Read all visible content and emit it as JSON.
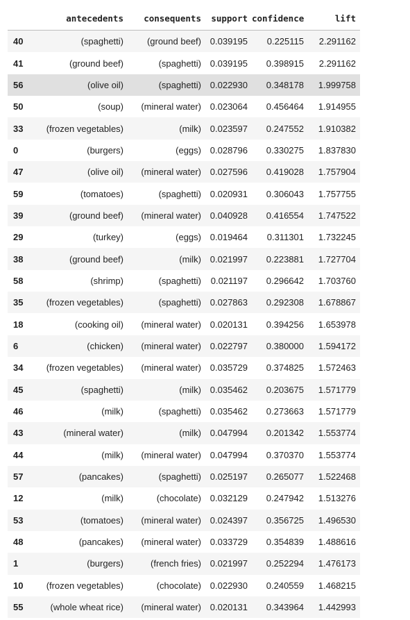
{
  "table": {
    "columns": [
      "antecedents",
      "consequents",
      "support",
      "confidence",
      "lift"
    ],
    "highlighted_index": "56",
    "rows": [
      {
        "index": "40",
        "antecedents": "(spaghetti)",
        "consequents": "(ground beef)",
        "support": "0.039195",
        "confidence": "0.225115",
        "lift": "2.291162"
      },
      {
        "index": "41",
        "antecedents": "(ground beef)",
        "consequents": "(spaghetti)",
        "support": "0.039195",
        "confidence": "0.398915",
        "lift": "2.291162"
      },
      {
        "index": "56",
        "antecedents": "(olive oil)",
        "consequents": "(spaghetti)",
        "support": "0.022930",
        "confidence": "0.348178",
        "lift": "1.999758"
      },
      {
        "index": "50",
        "antecedents": "(soup)",
        "consequents": "(mineral water)",
        "support": "0.023064",
        "confidence": "0.456464",
        "lift": "1.914955"
      },
      {
        "index": "33",
        "antecedents": "(frozen vegetables)",
        "consequents": "(milk)",
        "support": "0.023597",
        "confidence": "0.247552",
        "lift": "1.910382"
      },
      {
        "index": "0",
        "antecedents": "(burgers)",
        "consequents": "(eggs)",
        "support": "0.028796",
        "confidence": "0.330275",
        "lift": "1.837830"
      },
      {
        "index": "47",
        "antecedents": "(olive oil)",
        "consequents": "(mineral water)",
        "support": "0.027596",
        "confidence": "0.419028",
        "lift": "1.757904"
      },
      {
        "index": "59",
        "antecedents": "(tomatoes)",
        "consequents": "(spaghetti)",
        "support": "0.020931",
        "confidence": "0.306043",
        "lift": "1.757755"
      },
      {
        "index": "39",
        "antecedents": "(ground beef)",
        "consequents": "(mineral water)",
        "support": "0.040928",
        "confidence": "0.416554",
        "lift": "1.747522"
      },
      {
        "index": "29",
        "antecedents": "(turkey)",
        "consequents": "(eggs)",
        "support": "0.019464",
        "confidence": "0.311301",
        "lift": "1.732245"
      },
      {
        "index": "38",
        "antecedents": "(ground beef)",
        "consequents": "(milk)",
        "support": "0.021997",
        "confidence": "0.223881",
        "lift": "1.727704"
      },
      {
        "index": "58",
        "antecedents": "(shrimp)",
        "consequents": "(spaghetti)",
        "support": "0.021197",
        "confidence": "0.296642",
        "lift": "1.703760"
      },
      {
        "index": "35",
        "antecedents": "(frozen vegetables)",
        "consequents": "(spaghetti)",
        "support": "0.027863",
        "confidence": "0.292308",
        "lift": "1.678867"
      },
      {
        "index": "18",
        "antecedents": "(cooking oil)",
        "consequents": "(mineral water)",
        "support": "0.020131",
        "confidence": "0.394256",
        "lift": "1.653978"
      },
      {
        "index": "6",
        "antecedents": "(chicken)",
        "consequents": "(mineral water)",
        "support": "0.022797",
        "confidence": "0.380000",
        "lift": "1.594172"
      },
      {
        "index": "34",
        "antecedents": "(frozen vegetables)",
        "consequents": "(mineral water)",
        "support": "0.035729",
        "confidence": "0.374825",
        "lift": "1.572463"
      },
      {
        "index": "45",
        "antecedents": "(spaghetti)",
        "consequents": "(milk)",
        "support": "0.035462",
        "confidence": "0.203675",
        "lift": "1.571779"
      },
      {
        "index": "46",
        "antecedents": "(milk)",
        "consequents": "(spaghetti)",
        "support": "0.035462",
        "confidence": "0.273663",
        "lift": "1.571779"
      },
      {
        "index": "43",
        "antecedents": "(mineral water)",
        "consequents": "(milk)",
        "support": "0.047994",
        "confidence": "0.201342",
        "lift": "1.553774"
      },
      {
        "index": "44",
        "antecedents": "(milk)",
        "consequents": "(mineral water)",
        "support": "0.047994",
        "confidence": "0.370370",
        "lift": "1.553774"
      },
      {
        "index": "57",
        "antecedents": "(pancakes)",
        "consequents": "(spaghetti)",
        "support": "0.025197",
        "confidence": "0.265077",
        "lift": "1.522468"
      },
      {
        "index": "12",
        "antecedents": "(milk)",
        "consequents": "(chocolate)",
        "support": "0.032129",
        "confidence": "0.247942",
        "lift": "1.513276"
      },
      {
        "index": "53",
        "antecedents": "(tomatoes)",
        "consequents": "(mineral water)",
        "support": "0.024397",
        "confidence": "0.356725",
        "lift": "1.496530"
      },
      {
        "index": "48",
        "antecedents": "(pancakes)",
        "consequents": "(mineral water)",
        "support": "0.033729",
        "confidence": "0.354839",
        "lift": "1.488616"
      },
      {
        "index": "1",
        "antecedents": "(burgers)",
        "consequents": "(french fries)",
        "support": "0.021997",
        "confidence": "0.252294",
        "lift": "1.476173"
      },
      {
        "index": "10",
        "antecedents": "(frozen vegetables)",
        "consequents": "(chocolate)",
        "support": "0.022930",
        "confidence": "0.240559",
        "lift": "1.468215"
      },
      {
        "index": "55",
        "antecedents": "(whole wheat rice)",
        "consequents": "(mineral water)",
        "support": "0.020131",
        "confidence": "0.343964",
        "lift": "1.442993"
      }
    ]
  }
}
